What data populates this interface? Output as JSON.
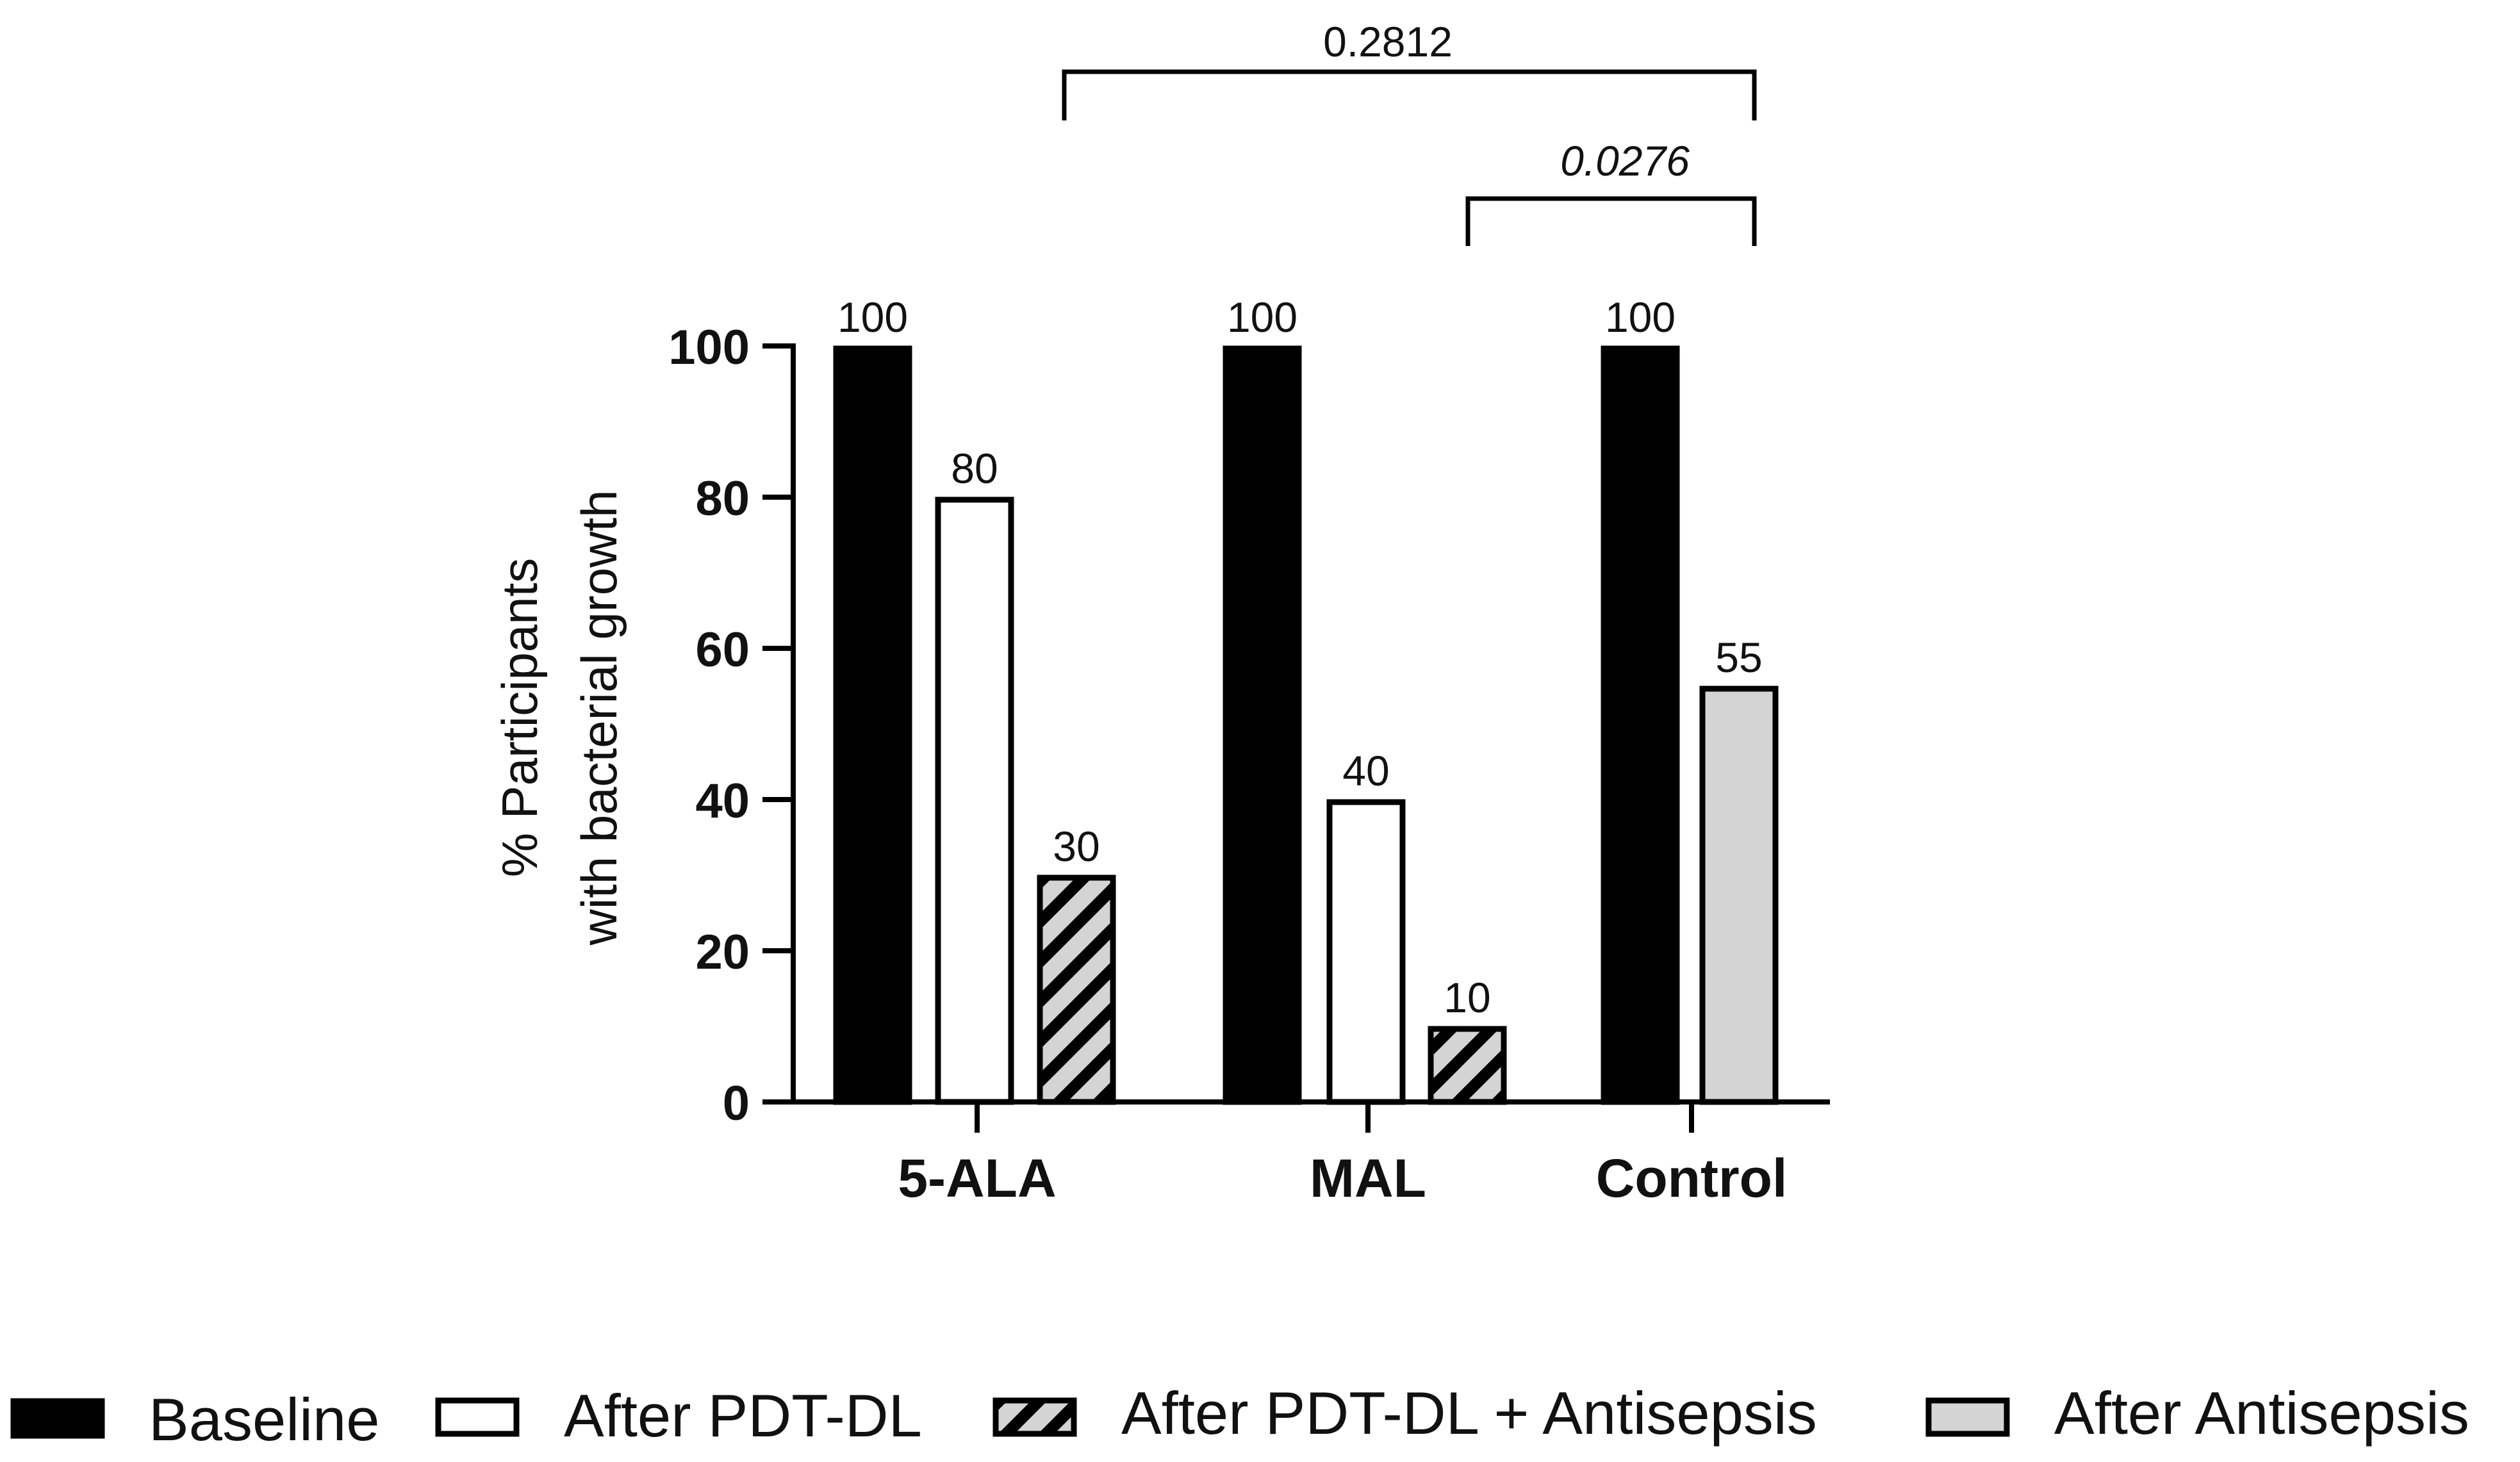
{
  "chart_data": {
    "type": "bar",
    "title": "",
    "xlabel": "",
    "ylabel_lines": [
      "% Participants",
      "with bacterial growth"
    ],
    "ylim": [
      0,
      100
    ],
    "yticks": [
      "0",
      "20",
      "40",
      "60",
      "80",
      "100"
    ],
    "categories": [
      "5-ALA",
      "MAL",
      "Control"
    ],
    "series": [
      {
        "name": "Baseline",
        "key": "baseline",
        "fill": "#000000",
        "pattern": "solid",
        "values": [
          100,
          100,
          100
        ],
        "labels": [
          "100",
          "100",
          "100"
        ]
      },
      {
        "name": "After PDT-DL",
        "key": "pdt",
        "fill": "#ffffff",
        "pattern": "solid",
        "values": [
          80,
          40,
          null
        ],
        "labels": [
          "80",
          "40",
          ""
        ]
      },
      {
        "name": "After PDT-DL + Antisepsis",
        "key": "pdt_anti",
        "fill": "#d4d4d4",
        "pattern": "hatch",
        "values": [
          30,
          10,
          null
        ],
        "labels": [
          "30",
          "10",
          ""
        ]
      },
      {
        "name": "After Antisepsis",
        "key": "anti",
        "fill": "#d4d4d4",
        "pattern": "solid",
        "values": [
          null,
          null,
          55
        ],
        "labels": [
          "",
          "",
          "55"
        ]
      }
    ],
    "comparisons": [
      {
        "from": "5-ALA",
        "to": "Control",
        "label": "0.2812",
        "italic": false
      },
      {
        "from": "MAL",
        "to": "Control",
        "label": "0.0276",
        "italic": true
      }
    ],
    "legend_position": "bottom"
  },
  "colors": {
    "ink": "#000000",
    "light_gray": "#d4d4d4",
    "white": "#ffffff"
  }
}
